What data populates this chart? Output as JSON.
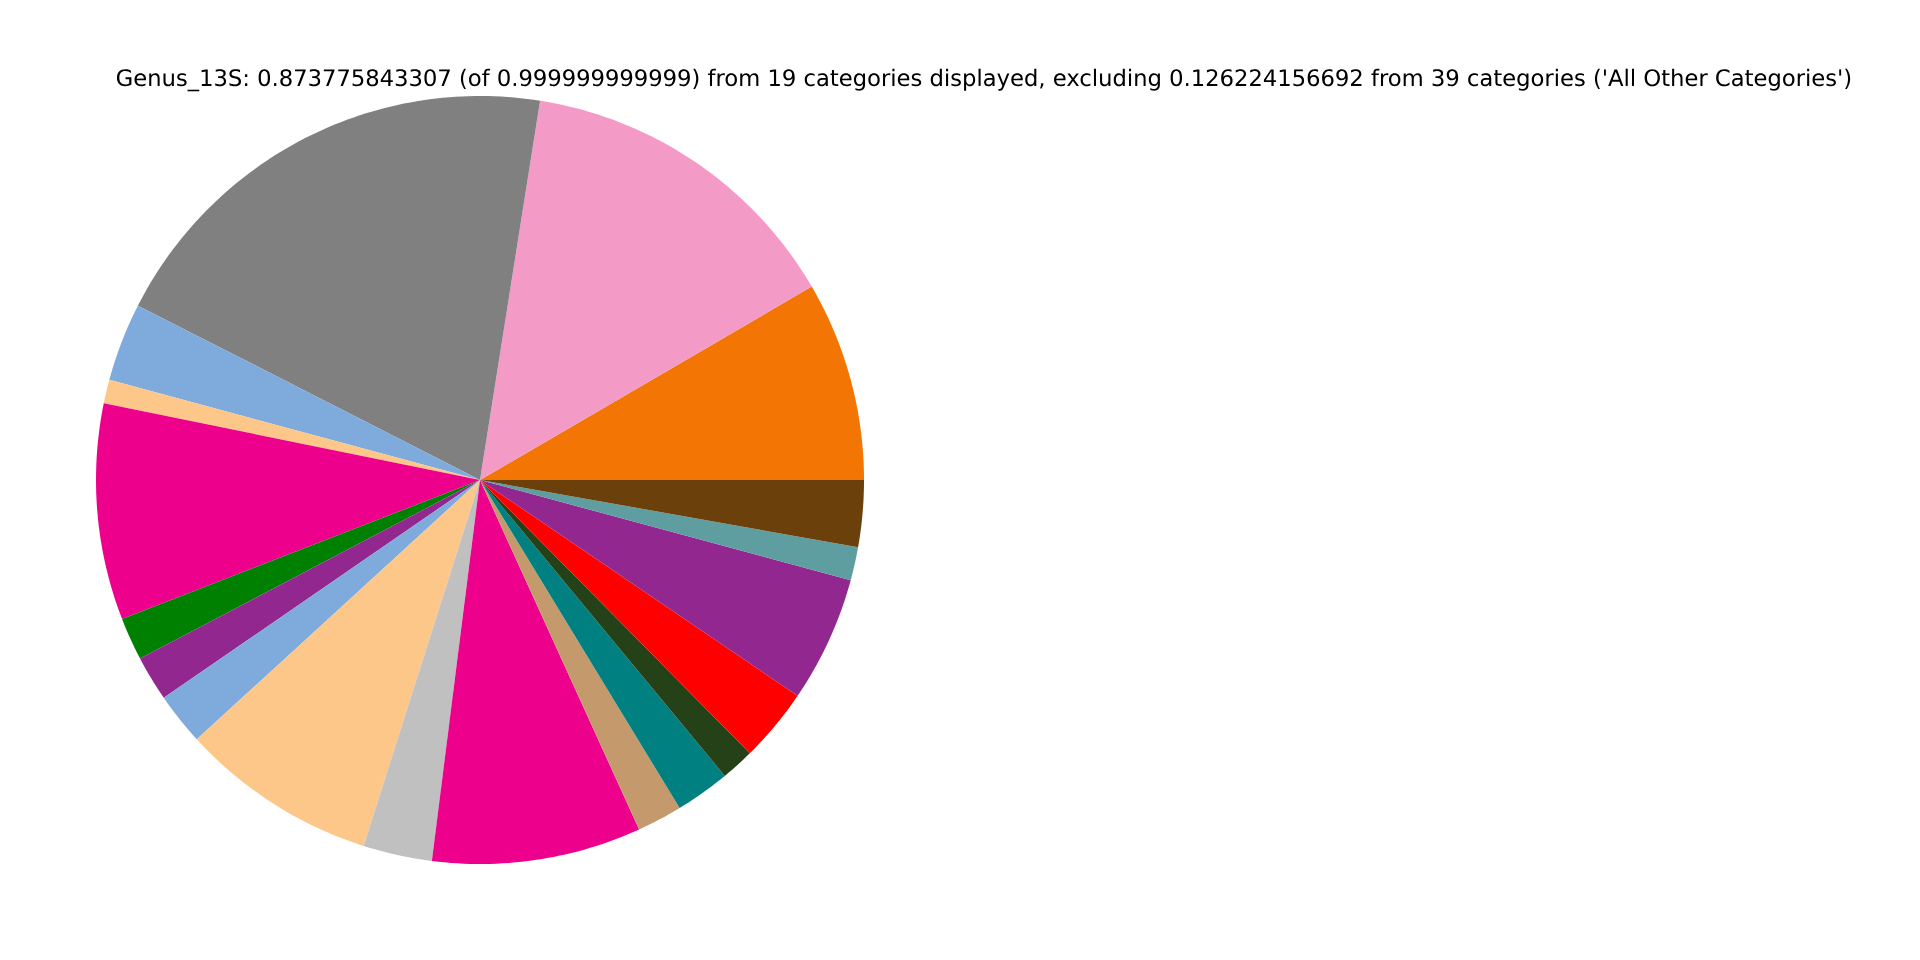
{
  "chart_data": {
    "type": "pie",
    "title": "Genus_13S: 0.873775843307 (of 0.999999999999) from 19 categories displayed, excluding 0.126224156692 from 39 categories ('All Other Categories')",
    "categories": [
      null,
      null,
      null,
      null,
      null,
      null,
      null,
      null,
      null,
      null,
      null,
      null,
      null,
      null,
      null,
      null,
      null,
      null,
      null
    ],
    "values": [
      8.4,
      14.1,
      20.0,
      3.3,
      1.0,
      9.1,
      1.8,
      1.9,
      2.2,
      8.3,
      2.9,
      8.8,
      1.9,
      2.3,
      1.4,
      3.1,
      5.3,
      1.4,
      2.8
    ],
    "colors": [
      "#f37504",
      "#f49ac6",
      "#808080",
      "#7eaadc",
      "#fdc78a",
      "#ec008c",
      "#008000",
      "#92278f",
      "#7eaadc",
      "#fdc78a",
      "#c0c0c0",
      "#ec008c",
      "#c49a6c",
      "#008080",
      "#254117",
      "#ff0000",
      "#92278f",
      "#5f9ea0",
      "#6b400a"
    ]
  }
}
